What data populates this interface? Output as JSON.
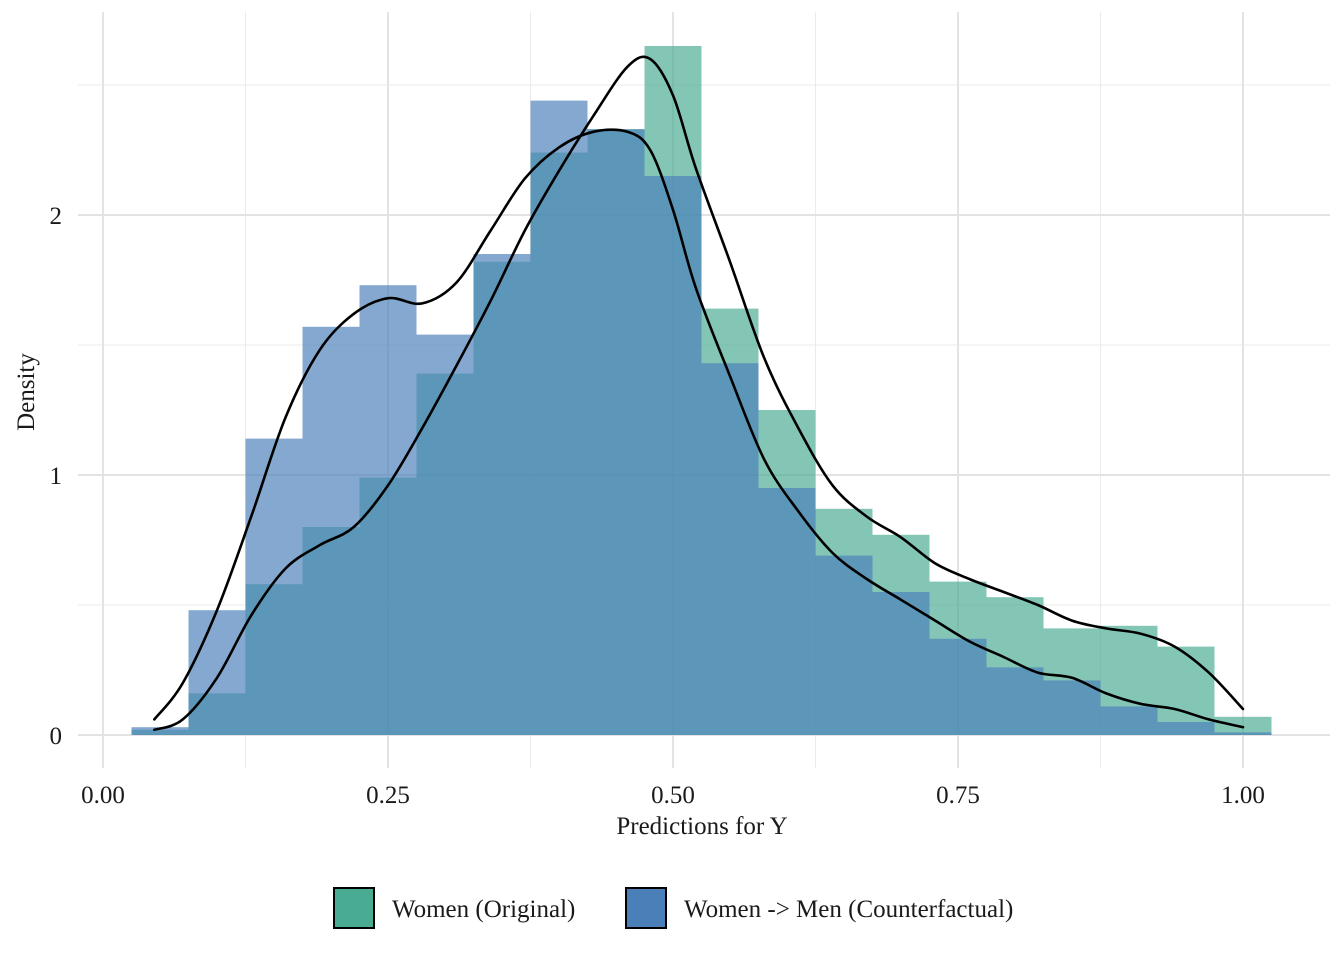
{
  "chart_data": {
    "type": "histogram_density",
    "xlabel": "Predictions for Y",
    "ylabel": "Density",
    "xlim": [
      -0.02,
      1.04
    ],
    "ylim": [
      -0.12,
      2.78
    ],
    "x_ticks": [
      0.0,
      0.25,
      0.5,
      0.75,
      1.0
    ],
    "x_tick_labels": [
      "0.00",
      "0.25",
      "0.50",
      "0.75",
      "1.00"
    ],
    "y_ticks": [
      0,
      1,
      2
    ],
    "y_tick_labels": [
      "0",
      "1",
      "2"
    ],
    "grid": true,
    "legend_position": "bottom",
    "bin_width": 0.05,
    "bin_centers": [
      0.05,
      0.1,
      0.15,
      0.2,
      0.25,
      0.3,
      0.35,
      0.4,
      0.45,
      0.5,
      0.55,
      0.6,
      0.65,
      0.7,
      0.75,
      0.8,
      0.85,
      0.9,
      0.95,
      1.0
    ],
    "series": [
      {
        "name": "Women (Original)",
        "color": "#4aab93",
        "histogram": [
          0.02,
          0.16,
          0.58,
          0.8,
          0.99,
          1.39,
          1.82,
          2.24,
          2.33,
          2.65,
          1.64,
          1.25,
          0.87,
          0.77,
          0.59,
          0.53,
          0.41,
          0.42,
          0.34,
          0.07
        ],
        "density": {
          "x": [
            0.045,
            0.07,
            0.1,
            0.13,
            0.16,
            0.19,
            0.22,
            0.25,
            0.28,
            0.31,
            0.34,
            0.37,
            0.4,
            0.43,
            0.46,
            0.48,
            0.5,
            0.52,
            0.55,
            0.58,
            0.61,
            0.64,
            0.67,
            0.7,
            0.73,
            0.76,
            0.79,
            0.82,
            0.85,
            0.88,
            0.91,
            0.94,
            0.97,
            1.0
          ],
          "y": [
            0.02,
            0.06,
            0.22,
            0.46,
            0.64,
            0.73,
            0.8,
            0.96,
            1.18,
            1.42,
            1.67,
            1.94,
            2.17,
            2.38,
            2.57,
            2.6,
            2.46,
            2.18,
            1.82,
            1.45,
            1.18,
            0.96,
            0.84,
            0.76,
            0.66,
            0.6,
            0.55,
            0.5,
            0.44,
            0.41,
            0.39,
            0.34,
            0.24,
            0.1
          ]
        }
      },
      {
        "name": "Women -> Men (Counterfactual)",
        "color": "#4a7fb8",
        "histogram": [
          0.03,
          0.48,
          1.14,
          1.57,
          1.73,
          1.54,
          1.85,
          2.44,
          2.33,
          2.15,
          1.43,
          0.95,
          0.69,
          0.55,
          0.37,
          0.26,
          0.21,
          0.11,
          0.05,
          0.01
        ],
        "density": {
          "x": [
            0.045,
            0.07,
            0.1,
            0.13,
            0.16,
            0.19,
            0.22,
            0.25,
            0.28,
            0.31,
            0.34,
            0.37,
            0.4,
            0.43,
            0.46,
            0.48,
            0.5,
            0.52,
            0.55,
            0.58,
            0.61,
            0.64,
            0.67,
            0.7,
            0.73,
            0.76,
            0.79,
            0.82,
            0.85,
            0.88,
            0.91,
            0.94,
            0.97,
            1.0
          ],
          "y": [
            0.06,
            0.2,
            0.48,
            0.84,
            1.22,
            1.48,
            1.62,
            1.68,
            1.66,
            1.74,
            1.94,
            2.14,
            2.26,
            2.32,
            2.32,
            2.25,
            2.02,
            1.72,
            1.38,
            1.06,
            0.86,
            0.7,
            0.6,
            0.52,
            0.44,
            0.36,
            0.3,
            0.24,
            0.22,
            0.16,
            0.12,
            0.1,
            0.06,
            0.03
          ]
        }
      }
    ]
  }
}
